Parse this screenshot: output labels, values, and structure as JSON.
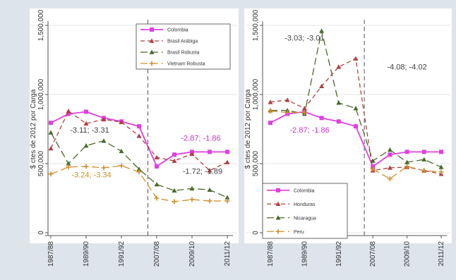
{
  "figure": {
    "colors": {
      "background": "#dde4ec",
      "plot_bg": "#ffffff",
      "grid": "#e6e6e6",
      "axis": "#555555",
      "vline": "#555555"
    }
  },
  "chart_data": [
    {
      "type": "line",
      "ylabel": "$ ctes de 2012 por Carga",
      "categories": [
        "1987/88",
        "1988/89",
        "1989/90",
        "1990/91",
        "1991/92",
        "1992/93",
        "2007/08",
        "2008/09",
        "2009/10",
        "2010/11",
        "2011/12"
      ],
      "tick_labels": [
        "1987/88",
        "1989/90",
        "1991/92",
        "2007/08",
        "2009/10",
        "2011/12"
      ],
      "tick_indices": [
        0,
        2,
        4,
        6,
        8,
        10
      ],
      "yticks": [
        0,
        500000,
        1000000,
        1500000
      ],
      "ytick_labels": [
        "0",
        "500,000",
        "1,000,000",
        "1,500,000"
      ],
      "ylim": [
        0,
        1500000
      ],
      "break_after_index": 5.5,
      "legend_position": "top-right",
      "series": [
        {
          "name": "Colombia",
          "color": "#e040e0",
          "marker": "square",
          "dash": "",
          "values": [
            795000,
            860000,
            875000,
            830000,
            805000,
            770000,
            480000,
            565000,
            585000,
            585000,
            585000
          ]
        },
        {
          "name": "Brasil Arábiga",
          "color": "#b04040",
          "marker": "triangle",
          "dash": "6,4",
          "values": [
            610000,
            880000,
            790000,
            820000,
            800000,
            700000,
            545000,
            520000,
            570000,
            450000,
            510000
          ]
        },
        {
          "name": "Brasil Robusta",
          "color": "#4a6a2a",
          "marker": "triangle",
          "dash": "10,5",
          "values": [
            725000,
            500000,
            630000,
            665000,
            590000,
            460000,
            350000,
            305000,
            320000,
            310000,
            255000
          ]
        },
        {
          "name": "Vietnam Robusta",
          "color": "#d09030",
          "marker": "plus",
          "dash": "10,5",
          "values": [
            425000,
            475000,
            480000,
            470000,
            485000,
            440000,
            250000,
            225000,
            240000,
            230000,
            230000
          ]
        }
      ],
      "annotations": [
        {
          "text": "-3.11; -3.31",
          "color": "#404040",
          "x": 2.2,
          "y": 725000
        },
        {
          "text": "-3.24; -3.34",
          "color": "#c8941e",
          "x": 2.3,
          "y": 400000
        },
        {
          "text": "-2.87; -1.86",
          "color": "#cc33cc",
          "x": 8.5,
          "y": 665000
        },
        {
          "text": "-1.72; -1.89",
          "color": "#404040",
          "x": 8.6,
          "y": 425000
        }
      ]
    },
    {
      "type": "line",
      "ylabel": "$ ctes de 2012 por Carga",
      "categories": [
        "1987/88",
        "1988/89",
        "1989/90",
        "1990/91",
        "1991/92",
        "1992/93",
        "2007/08",
        "2008/09",
        "2009/10",
        "2010/11",
        "2011/12"
      ],
      "tick_labels": [
        "1987/88",
        "1989/90",
        "1991/92",
        "2007/08",
        "2009/10",
        "2011/12"
      ],
      "tick_indices": [
        0,
        2,
        4,
        6,
        8,
        10
      ],
      "yticks": [
        0,
        500000,
        1000000,
        1500000
      ],
      "ytick_labels": [
        "0",
        "500,000",
        "1,000,000",
        "1,500,000"
      ],
      "ylim": [
        0,
        1500000
      ],
      "break_after_index": 5.5,
      "legend_position": "bottom-left",
      "series": [
        {
          "name": "Colombia",
          "color": "#e040e0",
          "marker": "square",
          "dash": "",
          "values": [
            795000,
            860000,
            875000,
            830000,
            805000,
            770000,
            480000,
            565000,
            585000,
            585000,
            585000
          ]
        },
        {
          "name": "Honduras",
          "color": "#b04040",
          "marker": "triangle",
          "dash": "6,4",
          "values": [
            945000,
            960000,
            900000,
            1060000,
            1200000,
            1260000,
            450000,
            470000,
            475000,
            450000,
            425000
          ]
        },
        {
          "name": "Nicaragua",
          "color": "#4a6a2a",
          "marker": "triangle",
          "dash": "10,5",
          "values": [
            885000,
            885000,
            860000,
            1460000,
            940000,
            900000,
            520000,
            600000,
            510000,
            530000,
            475000
          ]
        },
        {
          "name": "Peru",
          "color": "#d09030",
          "marker": "plus",
          "dash": "10,5",
          "values": [
            880000,
            870000,
            870000,
            null,
            null,
            null,
            460000,
            390000,
            480000,
            450000,
            440000
          ]
        }
      ],
      "annotations": [
        {
          "text": "-3.03; -3.01",
          "color": "#404040",
          "x": 2.0,
          "y": 1390000
        },
        {
          "text": "-4.08; -4.02",
          "color": "#404040",
          "x": 8.0,
          "y": 1180000
        },
        {
          "text": "-2.87; -1.86",
          "color": "#cc33cc",
          "x": 2.3,
          "y": 725000
        }
      ]
    }
  ]
}
